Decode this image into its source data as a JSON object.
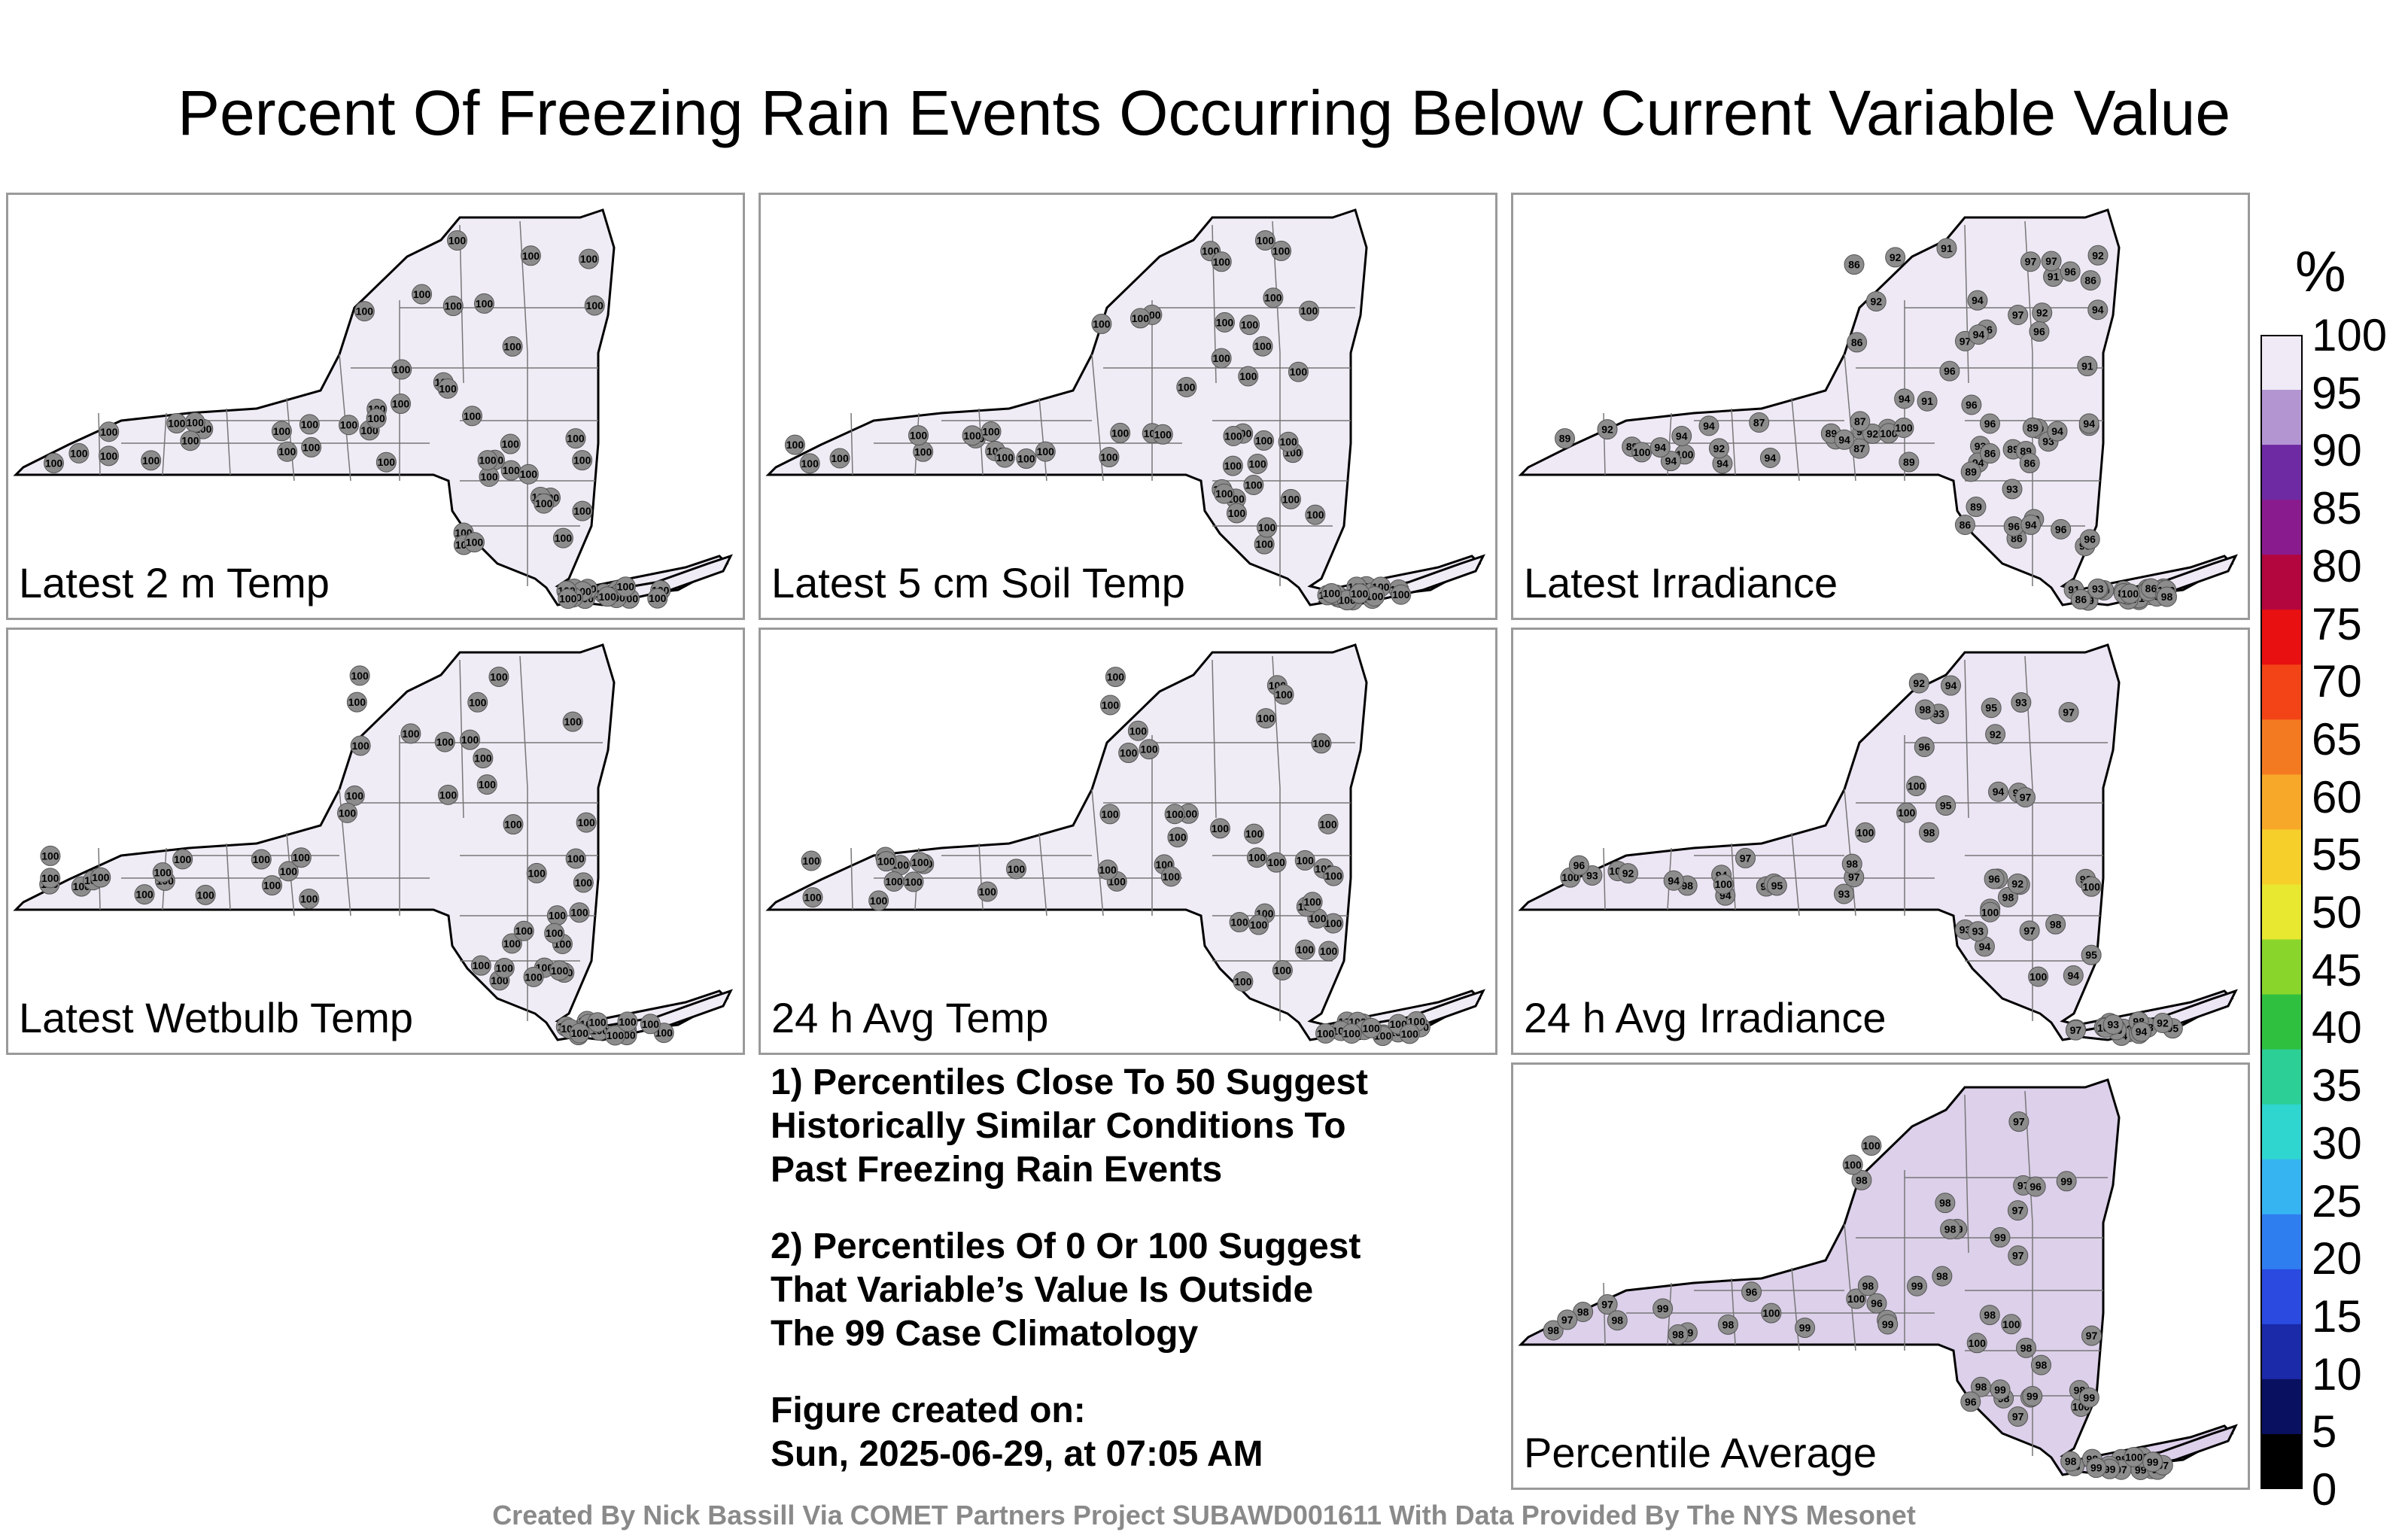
{
  "title": "Percent Of Freezing Rain Events Occurring Below Current Variable Value",
  "panels": [
    {
      "label": "Latest 2 m Temp",
      "fill": "#f0ecf6",
      "station_values": [
        100
      ]
    },
    {
      "label": "Latest 5 cm Soil Temp",
      "fill": "#f0ecf6",
      "station_values": [
        100
      ]
    },
    {
      "label": "Latest Irradiance",
      "fill": "#efe9f5",
      "station_values": [
        100,
        96,
        89,
        89,
        94,
        91,
        89,
        93,
        94,
        92,
        93,
        91,
        87,
        97,
        94,
        86,
        89,
        86,
        96,
        98,
        92,
        94,
        86,
        100
      ]
    },
    {
      "label": "Latest Wetbulb Temp",
      "fill": "#f0ecf6",
      "station_values": [
        100
      ]
    },
    {
      "label": "24 h Avg Temp",
      "fill": "#f0ecf6",
      "station_values": [
        100
      ]
    },
    {
      "label": "24 h Avg Irradiance",
      "fill": "#ece5f4",
      "station_values": [
        100,
        95,
        100,
        94,
        93,
        92,
        98,
        95,
        97,
        96,
        94,
        93,
        92,
        98,
        97,
        100,
        94
      ]
    },
    {
      "label": "Percentile Average",
      "fill": "#dcd0ea",
      "station_values": [
        99,
        98,
        100,
        99,
        98,
        97,
        98,
        99,
        96,
        97,
        98,
        99,
        100
      ]
    }
  ],
  "notes": {
    "note1": [
      "1) Percentiles Close To 50 Suggest",
      "Historically Similar Conditions To",
      "Past Freezing Rain Events"
    ],
    "note2": [
      "2) Percentiles Of 0 Or 100 Suggest",
      "That Variable’s Value Is Outside",
      "The 99 Case Climatology"
    ],
    "created": [
      "Figure created on:",
      "Sun, 2025-06-29, at 07:05 AM"
    ]
  },
  "colorbar": {
    "unit": "%",
    "ticks": [
      "100",
      "95",
      "90",
      "85",
      "80",
      "75",
      "70",
      "65",
      "60",
      "55",
      "50",
      "45",
      "40",
      "35",
      "30",
      "25",
      "20",
      "15",
      "10",
      "5",
      "0"
    ],
    "colors": [
      "#000000",
      "#0a1060",
      "#1a2aa8",
      "#2a4ae0",
      "#2f7ef0",
      "#36b4f2",
      "#2fd6cf",
      "#2ccf96",
      "#30c040",
      "#8ad52c",
      "#e8e830",
      "#f7cf2a",
      "#f7a829",
      "#f47a22",
      "#f24416",
      "#e81010",
      "#b3063e",
      "#8a1b8e",
      "#6e2aa3",
      "#b395d2",
      "#efeaf5"
    ]
  },
  "footer": "Created By Nick Bassill Via COMET Partners Project SUBAWD001611 With Data Provided By The NYS Mesonet"
}
